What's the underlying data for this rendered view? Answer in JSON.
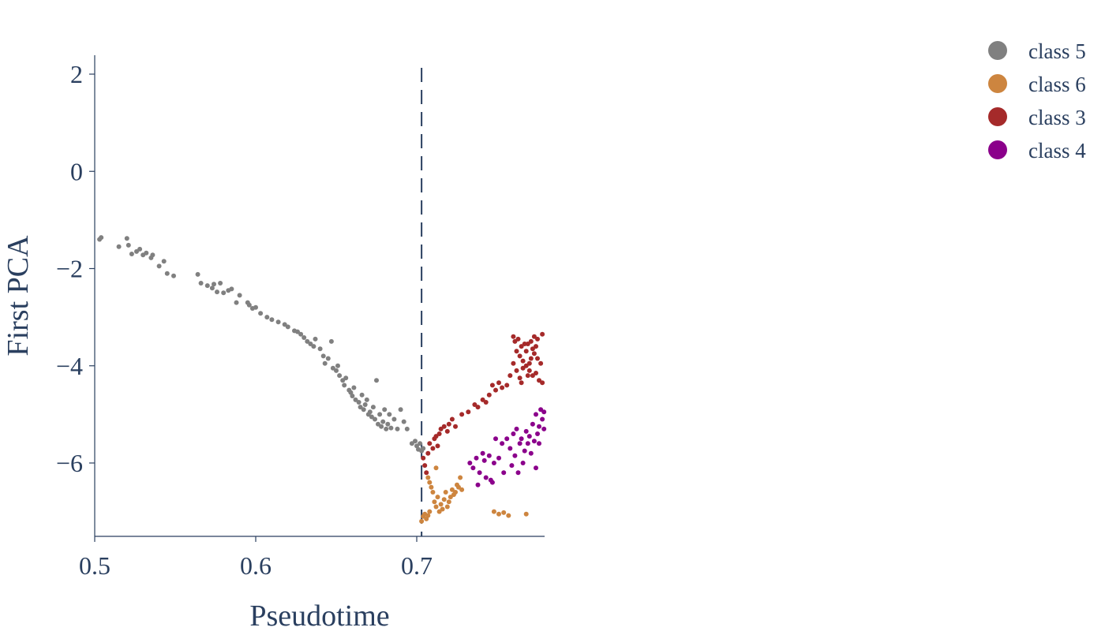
{
  "chart_data": {
    "type": "scatter",
    "xlabel": "Pseudotime",
    "ylabel": "First PCA",
    "xlim": [
      0.5,
      0.78
    ],
    "ylim": [
      -7.5,
      2.4
    ],
    "xticks": [
      0.5,
      0.6,
      0.7
    ],
    "xtick_labels": [
      "0.5",
      "0.6",
      "0.7"
    ],
    "yticks": [
      2,
      0,
      -2,
      -4,
      -6
    ],
    "ytick_labels": [
      "2",
      "0",
      "−2",
      "−4",
      "−6"
    ],
    "grid": false,
    "legend_position": "top-right",
    "vline": {
      "x": 0.703,
      "style": "dashed",
      "color": "#2a3f5f"
    },
    "series": [
      {
        "name": "class 5",
        "color": "#808080",
        "points": [
          [
            0.503,
            -1.4
          ],
          [
            0.504,
            -1.36
          ],
          [
            0.515,
            -1.55
          ],
          [
            0.52,
            -1.38
          ],
          [
            0.521,
            -1.52
          ],
          [
            0.523,
            -1.7
          ],
          [
            0.526,
            -1.65
          ],
          [
            0.528,
            -1.6
          ],
          [
            0.53,
            -1.72
          ],
          [
            0.532,
            -1.68
          ],
          [
            0.535,
            -1.78
          ],
          [
            0.536,
            -1.72
          ],
          [
            0.54,
            -1.95
          ],
          [
            0.543,
            -1.85
          ],
          [
            0.545,
            -2.1
          ],
          [
            0.549,
            -2.15
          ],
          [
            0.564,
            -2.12
          ],
          [
            0.566,
            -2.3
          ],
          [
            0.57,
            -2.35
          ],
          [
            0.573,
            -2.4
          ],
          [
            0.574,
            -2.32
          ],
          [
            0.576,
            -2.48
          ],
          [
            0.578,
            -2.3
          ],
          [
            0.58,
            -2.5
          ],
          [
            0.583,
            -2.45
          ],
          [
            0.585,
            -2.42
          ],
          [
            0.588,
            -2.7
          ],
          [
            0.59,
            -2.55
          ],
          [
            0.595,
            -2.7
          ],
          [
            0.596,
            -2.75
          ],
          [
            0.598,
            -2.82
          ],
          [
            0.6,
            -2.8
          ],
          [
            0.603,
            -2.92
          ],
          [
            0.607,
            -3.0
          ],
          [
            0.61,
            -3.05
          ],
          [
            0.614,
            -3.1
          ],
          [
            0.618,
            -3.15
          ],
          [
            0.62,
            -3.2
          ],
          [
            0.624,
            -3.28
          ],
          [
            0.626,
            -3.3
          ],
          [
            0.628,
            -3.35
          ],
          [
            0.63,
            -3.42
          ],
          [
            0.632,
            -3.5
          ],
          [
            0.634,
            -3.55
          ],
          [
            0.636,
            -3.6
          ],
          [
            0.637,
            -3.45
          ],
          [
            0.64,
            -3.65
          ],
          [
            0.642,
            -3.8
          ],
          [
            0.643,
            -3.95
          ],
          [
            0.645,
            -3.85
          ],
          [
            0.647,
            -3.5
          ],
          [
            0.648,
            -4.05
          ],
          [
            0.65,
            -4.1
          ],
          [
            0.651,
            -4.0
          ],
          [
            0.652,
            -4.2
          ],
          [
            0.654,
            -4.3
          ],
          [
            0.655,
            -4.4
          ],
          [
            0.656,
            -4.25
          ],
          [
            0.658,
            -4.5
          ],
          [
            0.659,
            -4.55
          ],
          [
            0.66,
            -4.62
          ],
          [
            0.661,
            -4.45
          ],
          [
            0.662,
            -4.7
          ],
          [
            0.664,
            -4.75
          ],
          [
            0.665,
            -4.85
          ],
          [
            0.666,
            -4.6
          ],
          [
            0.667,
            -4.9
          ],
          [
            0.668,
            -4.8
          ],
          [
            0.669,
            -4.7
          ],
          [
            0.67,
            -5.0
          ],
          [
            0.671,
            -4.95
          ],
          [
            0.672,
            -5.05
          ],
          [
            0.673,
            -4.85
          ],
          [
            0.674,
            -5.1
          ],
          [
            0.675,
            -4.3
          ],
          [
            0.676,
            -5.2
          ],
          [
            0.677,
            -5.0
          ],
          [
            0.678,
            -5.25
          ],
          [
            0.679,
            -5.15
          ],
          [
            0.68,
            -4.9
          ],
          [
            0.681,
            -5.3
          ],
          [
            0.682,
            -5.2
          ],
          [
            0.683,
            -5.0
          ],
          [
            0.684,
            -5.28
          ],
          [
            0.686,
            -5.1
          ],
          [
            0.688,
            -5.3
          ],
          [
            0.69,
            -4.9
          ],
          [
            0.692,
            -5.15
          ],
          [
            0.694,
            -5.3
          ],
          [
            0.697,
            -5.6
          ],
          [
            0.699,
            -5.55
          ],
          [
            0.7,
            -5.65
          ],
          [
            0.701,
            -5.72
          ],
          [
            0.702,
            -5.6
          ],
          [
            0.703,
            -5.75
          ],
          [
            0.704,
            -5.7
          ]
        ]
      },
      {
        "name": "class 6",
        "color": "#cd853f",
        "points": [
          [
            0.703,
            -7.2
          ],
          [
            0.704,
            -7.1
          ],
          [
            0.705,
            -7.05
          ],
          [
            0.706,
            -7.15
          ],
          [
            0.707,
            -7.08
          ],
          [
            0.708,
            -7.0
          ],
          [
            0.707,
            -6.3
          ],
          [
            0.708,
            -6.4
          ],
          [
            0.709,
            -6.5
          ],
          [
            0.71,
            -6.6
          ],
          [
            0.711,
            -6.8
          ],
          [
            0.712,
            -6.9
          ],
          [
            0.713,
            -6.7
          ],
          [
            0.714,
            -7.0
          ],
          [
            0.715,
            -6.85
          ],
          [
            0.716,
            -6.95
          ],
          [
            0.717,
            -6.75
          ],
          [
            0.718,
            -6.6
          ],
          [
            0.719,
            -6.9
          ],
          [
            0.72,
            -6.8
          ],
          [
            0.721,
            -6.7
          ],
          [
            0.722,
            -6.55
          ],
          [
            0.723,
            -6.65
          ],
          [
            0.724,
            -6.6
          ],
          [
            0.725,
            -6.45
          ],
          [
            0.726,
            -6.5
          ],
          [
            0.727,
            -6.3
          ],
          [
            0.728,
            -6.55
          ],
          [
            0.712,
            -6.1
          ],
          [
            0.748,
            -7.0
          ],
          [
            0.751,
            -7.05
          ],
          [
            0.754,
            -7.02
          ],
          [
            0.757,
            -7.08
          ],
          [
            0.768,
            -7.05
          ]
        ]
      },
      {
        "name": "class 3",
        "color": "#a52a2a",
        "points": [
          [
            0.704,
            -5.9
          ],
          [
            0.705,
            -6.05
          ],
          [
            0.706,
            -6.2
          ],
          [
            0.707,
            -5.8
          ],
          [
            0.708,
            -5.6
          ],
          [
            0.71,
            -5.7
          ],
          [
            0.711,
            -5.5
          ],
          [
            0.712,
            -5.45
          ],
          [
            0.713,
            -5.65
          ],
          [
            0.714,
            -5.4
          ],
          [
            0.715,
            -5.3
          ],
          [
            0.717,
            -5.25
          ],
          [
            0.719,
            -5.35
          ],
          [
            0.72,
            -5.2
          ],
          [
            0.722,
            -5.1
          ],
          [
            0.724,
            -5.25
          ],
          [
            0.728,
            -5.0
          ],
          [
            0.732,
            -4.95
          ],
          [
            0.736,
            -4.8
          ],
          [
            0.738,
            -4.85
          ],
          [
            0.741,
            -4.7
          ],
          [
            0.743,
            -4.75
          ],
          [
            0.745,
            -4.6
          ],
          [
            0.747,
            -4.4
          ],
          [
            0.749,
            -4.5
          ],
          [
            0.751,
            -4.35
          ],
          [
            0.753,
            -4.45
          ],
          [
            0.756,
            -4.4
          ],
          [
            0.758,
            -4.2
          ],
          [
            0.76,
            -3.4
          ],
          [
            0.761,
            -3.5
          ],
          [
            0.762,
            -3.7
          ],
          [
            0.763,
            -3.45
          ],
          [
            0.764,
            -3.8
          ],
          [
            0.765,
            -3.6
          ],
          [
            0.766,
            -3.9
          ],
          [
            0.767,
            -3.55
          ],
          [
            0.768,
            -4.0
          ],
          [
            0.769,
            -4.2
          ],
          [
            0.77,
            -4.1
          ],
          [
            0.771,
            -3.5
          ],
          [
            0.772,
            -3.65
          ],
          [
            0.773,
            -3.75
          ],
          [
            0.774,
            -4.15
          ],
          [
            0.775,
            -3.85
          ],
          [
            0.776,
            -4.3
          ],
          [
            0.777,
            -3.95
          ],
          [
            0.778,
            -3.35
          ],
          [
            0.762,
            -4.1
          ],
          [
            0.764,
            -4.25
          ],
          [
            0.766,
            -4.05
          ],
          [
            0.768,
            -3.7
          ],
          [
            0.77,
            -3.95
          ],
          [
            0.772,
            -4.2
          ],
          [
            0.774,
            -3.6
          ],
          [
            0.775,
            -3.45
          ],
          [
            0.778,
            -4.35
          ],
          [
            0.76,
            -3.95
          ],
          [
            0.765,
            -4.35
          ],
          [
            0.769,
            -3.55
          ],
          [
            0.771,
            -3.85
          ],
          [
            0.773,
            -3.4
          ]
        ]
      },
      {
        "name": "class 4",
        "color": "#8b008b",
        "points": [
          [
            0.733,
            -6.0
          ],
          [
            0.735,
            -6.1
          ],
          [
            0.737,
            -5.9
          ],
          [
            0.739,
            -6.2
          ],
          [
            0.741,
            -5.8
          ],
          [
            0.743,
            -6.3
          ],
          [
            0.745,
            -5.85
          ],
          [
            0.747,
            -6.4
          ],
          [
            0.748,
            -6.0
          ],
          [
            0.749,
            -5.5
          ],
          [
            0.751,
            -5.9
          ],
          [
            0.753,
            -5.6
          ],
          [
            0.754,
            -6.2
          ],
          [
            0.756,
            -5.5
          ],
          [
            0.758,
            -5.7
          ],
          [
            0.759,
            -6.05
          ],
          [
            0.76,
            -5.4
          ],
          [
            0.761,
            -5.85
          ],
          [
            0.762,
            -5.3
          ],
          [
            0.763,
            -6.2
          ],
          [
            0.764,
            -5.6
          ],
          [
            0.765,
            -5.5
          ],
          [
            0.766,
            -6.0
          ],
          [
            0.767,
            -5.75
          ],
          [
            0.768,
            -5.35
          ],
          [
            0.769,
            -5.6
          ],
          [
            0.77,
            -5.45
          ],
          [
            0.771,
            -5.8
          ],
          [
            0.772,
            -5.2
          ],
          [
            0.773,
            -5.55
          ],
          [
            0.774,
            -5.0
          ],
          [
            0.775,
            -5.4
          ],
          [
            0.776,
            -5.25
          ],
          [
            0.777,
            -4.9
          ],
          [
            0.778,
            -5.1
          ],
          [
            0.779,
            -4.95
          ],
          [
            0.779,
            -5.3
          ],
          [
            0.776,
            -5.6
          ],
          [
            0.774,
            -6.1
          ],
          [
            0.746,
            -6.35
          ],
          [
            0.738,
            -6.45
          ],
          [
            0.742,
            -5.95
          ]
        ]
      }
    ]
  }
}
